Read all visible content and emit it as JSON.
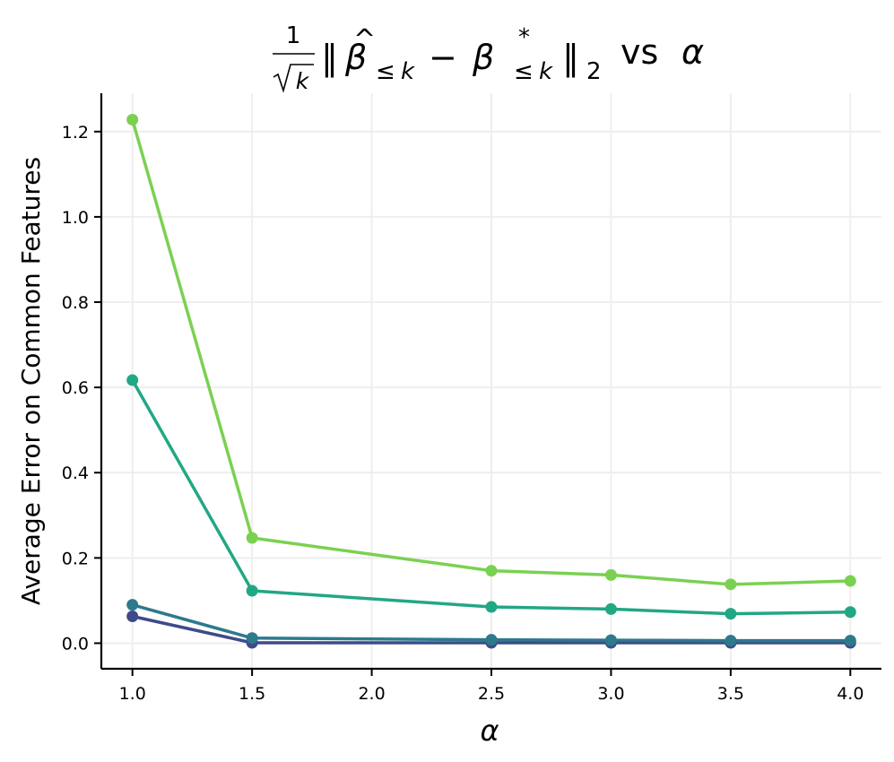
{
  "chart_data": {
    "type": "line",
    "title": {
      "frac_num": "1",
      "frac_den": "k",
      "norm_left": "‖",
      "beta": "β",
      "hat": "^",
      "sub_le": "≤",
      "sub_k": "k",
      "minus": "−",
      "star": "*",
      "norm_right": "‖",
      "norm_sub": "2",
      "vs": "vs",
      "alpha": "α"
    },
    "xlabel": "α",
    "ylabel": "Average Error on Common Features",
    "xlim": [
      0.87,
      4.13
    ],
    "ylim": [
      -0.06,
      1.29
    ],
    "xticks": [
      1.0,
      1.5,
      2.0,
      2.5,
      3.0,
      3.5,
      4.0
    ],
    "xtick_labels": [
      "1.0",
      "1.5",
      "2.0",
      "2.5",
      "3.0",
      "3.5",
      "4.0"
    ],
    "yticks": [
      0.0,
      0.2,
      0.4,
      0.6,
      0.8,
      1.0,
      1.2
    ],
    "ytick_labels": [
      "0.0",
      "0.2",
      "0.4",
      "0.6",
      "0.8",
      "1.0",
      "1.2"
    ],
    "grid": true,
    "legend": "none",
    "x": [
      1.0,
      1.5,
      2.5,
      3.0,
      3.5,
      4.0
    ],
    "series": [
      {
        "color": "#3f4a8a",
        "values": [
          0.063,
          0.001,
          0.001,
          0.001,
          0.001,
          0.001
        ]
      },
      {
        "color": "#2c7a8c",
        "values": [
          0.09,
          0.012,
          0.008,
          0.007,
          0.006,
          0.006
        ]
      },
      {
        "color": "#22a784",
        "values": [
          0.617,
          0.123,
          0.085,
          0.08,
          0.069,
          0.073
        ]
      },
      {
        "color": "#7ad151",
        "values": [
          1.228,
          0.247,
          0.17,
          0.16,
          0.138,
          0.146
        ]
      }
    ]
  }
}
